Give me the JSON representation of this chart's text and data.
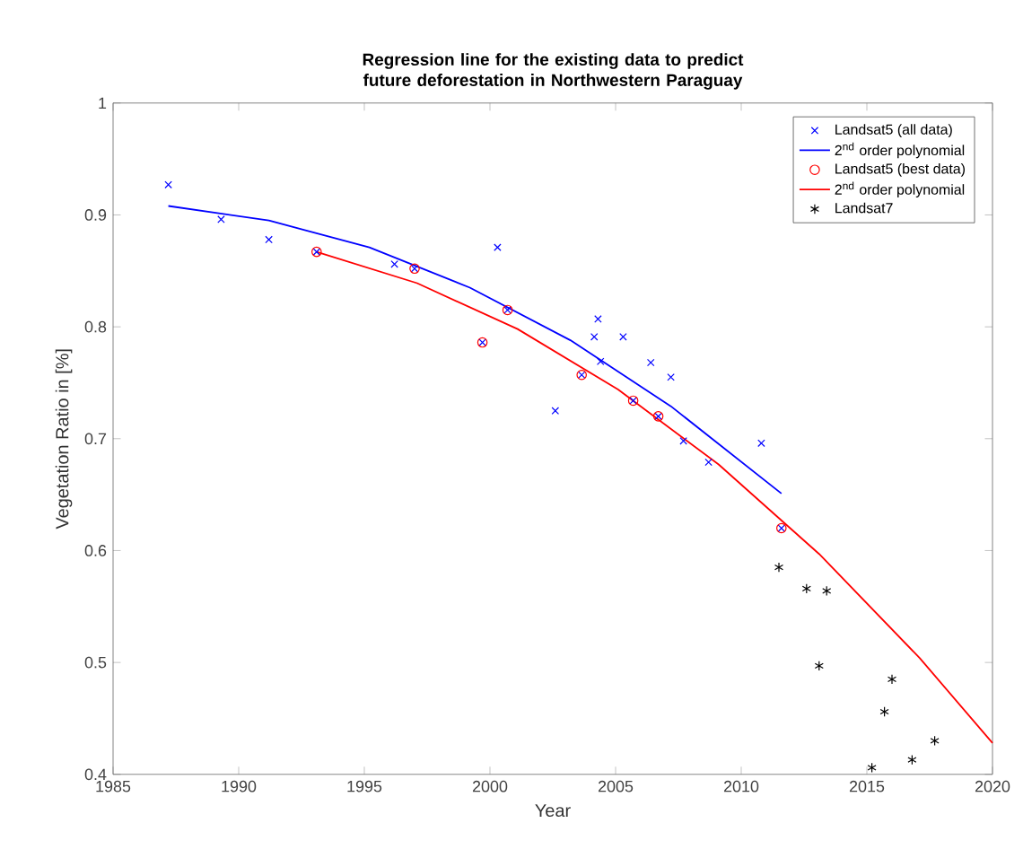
{
  "chart_data": {
    "type": "scatter",
    "title": "Regression line for the existing data to predict future deforestation in Northwestern Paraguay",
    "xlabel": "Year",
    "ylabel": "Vegetation Ratio in [%]",
    "xlim": [
      1985,
      2020
    ],
    "ylim": [
      0.4,
      1
    ],
    "xticks": [
      1985,
      1990,
      1995,
      2000,
      2005,
      2010,
      2015,
      2020
    ],
    "yticks": [
      0.4,
      0.5,
      0.6,
      0.7,
      0.8,
      0.9,
      1
    ],
    "legend": "top right",
    "series": [
      {
        "name": "Landsat5 (all data)",
        "marker": "cross",
        "color": "#0000ff",
        "x": [
          1987.2,
          1989.3,
          1991.2,
          1993.1,
          1996.2,
          1997.0,
          2000.3,
          1999.7,
          2000.7,
          2002.6,
          2003.65,
          2004.3,
          2004.15,
          2005.3,
          2004.4,
          2006.4,
          2007.2,
          2005.7,
          2006.7,
          2007.7,
          2008.7,
          2010.8,
          2011.6
        ],
        "values": [
          0.927,
          0.896,
          0.878,
          0.867,
          0.856,
          0.852,
          0.871,
          0.786,
          0.815,
          0.725,
          0.757,
          0.807,
          0.791,
          0.791,
          0.769,
          0.768,
          0.755,
          0.734,
          0.72,
          0.698,
          0.679,
          0.696,
          0.62
        ]
      },
      {
        "name": "2$^{nd}$ order polynomial",
        "type": "line",
        "color": "#0000ff",
        "x": [
          1987.2,
          1991.2,
          1995.2,
          1999.2,
          2003.2,
          2007.2,
          2011.6
        ],
        "values": [
          0.908,
          0.895,
          0.871,
          0.835,
          0.788,
          0.729,
          0.651
        ]
      },
      {
        "name": "Landsat5 (best data)",
        "marker": "circle",
        "color": "#ff0000",
        "x": [
          1993.1,
          1997.0,
          1999.7,
          2000.7,
          2003.65,
          2005.7,
          2006.7,
          2011.6
        ],
        "values": [
          0.867,
          0.852,
          0.786,
          0.815,
          0.757,
          0.734,
          0.72,
          0.62
        ]
      },
      {
        "name": "2$^{nd}$ order polynomial",
        "type": "line",
        "color": "#ff0000",
        "x": [
          1993.1,
          1997.1,
          2001.1,
          2005.1,
          2009.1,
          2013.1,
          2017.1,
          2020
        ],
        "values": [
          0.867,
          0.839,
          0.798,
          0.744,
          0.677,
          0.597,
          0.504,
          0.428
        ]
      },
      {
        "name": "Landsat7",
        "marker": "cross",
        "color": "#000000",
        "x": [
          2011.5,
          2012.6,
          2013.4,
          2013.1,
          2016.0,
          2015.7,
          2017.7,
          2015.2,
          2016.8
        ],
        "values": [
          0.585,
          0.566,
          0.564,
          0.497,
          0.485,
          0.456,
          0.43,
          0.406,
          0.413
        ]
      }
    ]
  }
}
